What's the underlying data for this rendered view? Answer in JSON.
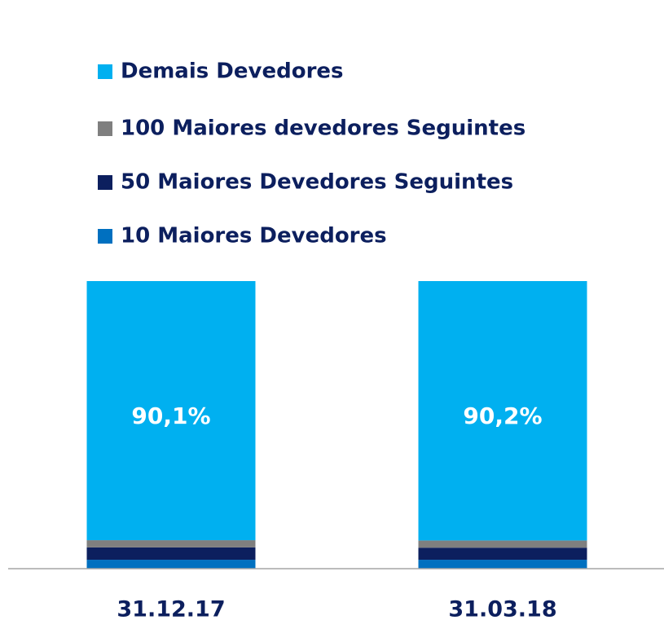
{
  "chart_data": {
    "type": "stacked_bar",
    "categories": [
      "31.12.17",
      "31.03.18"
    ],
    "series": [
      {
        "name": "10 Maiores Devedores",
        "color": "#0070c0",
        "values": [
          3.1,
          3.1
        ]
      },
      {
        "name": "50 Maiores Devedores Seguintes",
        "color": "#0c1f5e",
        "values": [
          4.3,
          4.2
        ]
      },
      {
        "name": "100 Maiores devedores Seguintes",
        "color": "#7f7f7f",
        "values": [
          2.5,
          2.5
        ]
      },
      {
        "name": "Demais Devedores",
        "color": "#00b0f0",
        "values": [
          90.1,
          90.2
        ],
        "value_labels": [
          "90,1%",
          "90,2%"
        ]
      }
    ],
    "legend": "top-left"
  }
}
